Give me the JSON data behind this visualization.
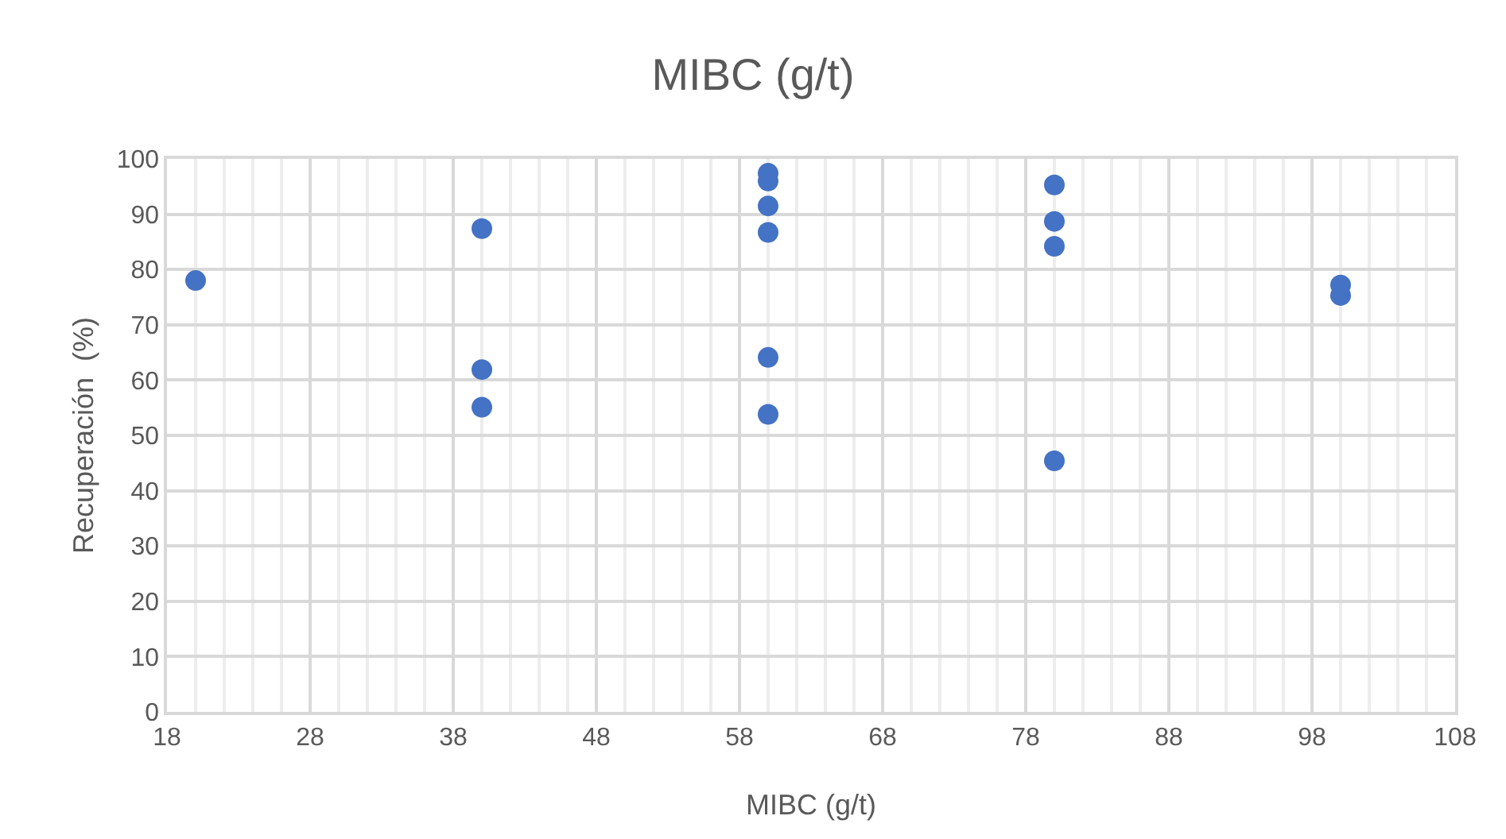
{
  "chart_data": {
    "type": "scatter",
    "title": "MIBC (g/t)",
    "xlabel": "MIBC (g/t)",
    "ylabel": "Recuperación  (%)",
    "x": [
      20,
      40,
      40,
      40,
      60,
      60,
      60,
      60,
      60,
      60,
      80,
      80,
      80,
      80,
      100,
      100
    ],
    "series": [
      {
        "color": "#4472c4",
        "values": [
          78,
          87.4,
          61.9,
          55.1,
          97.4,
          96,
          91.5,
          86.7,
          64.1,
          53.8,
          95.3,
          88.7,
          84.2,
          45.4,
          77.2,
          75.3
        ]
      }
    ],
    "xlim": [
      18,
      108
    ],
    "xticks": [
      18,
      28,
      38,
      48,
      58,
      68,
      78,
      88,
      98,
      108
    ],
    "ylim": [
      0,
      100
    ],
    "yticks": [
      0,
      10,
      20,
      30,
      40,
      50,
      60,
      70,
      80,
      90,
      100
    ],
    "grid": true,
    "marker": "circle",
    "legend": false
  }
}
